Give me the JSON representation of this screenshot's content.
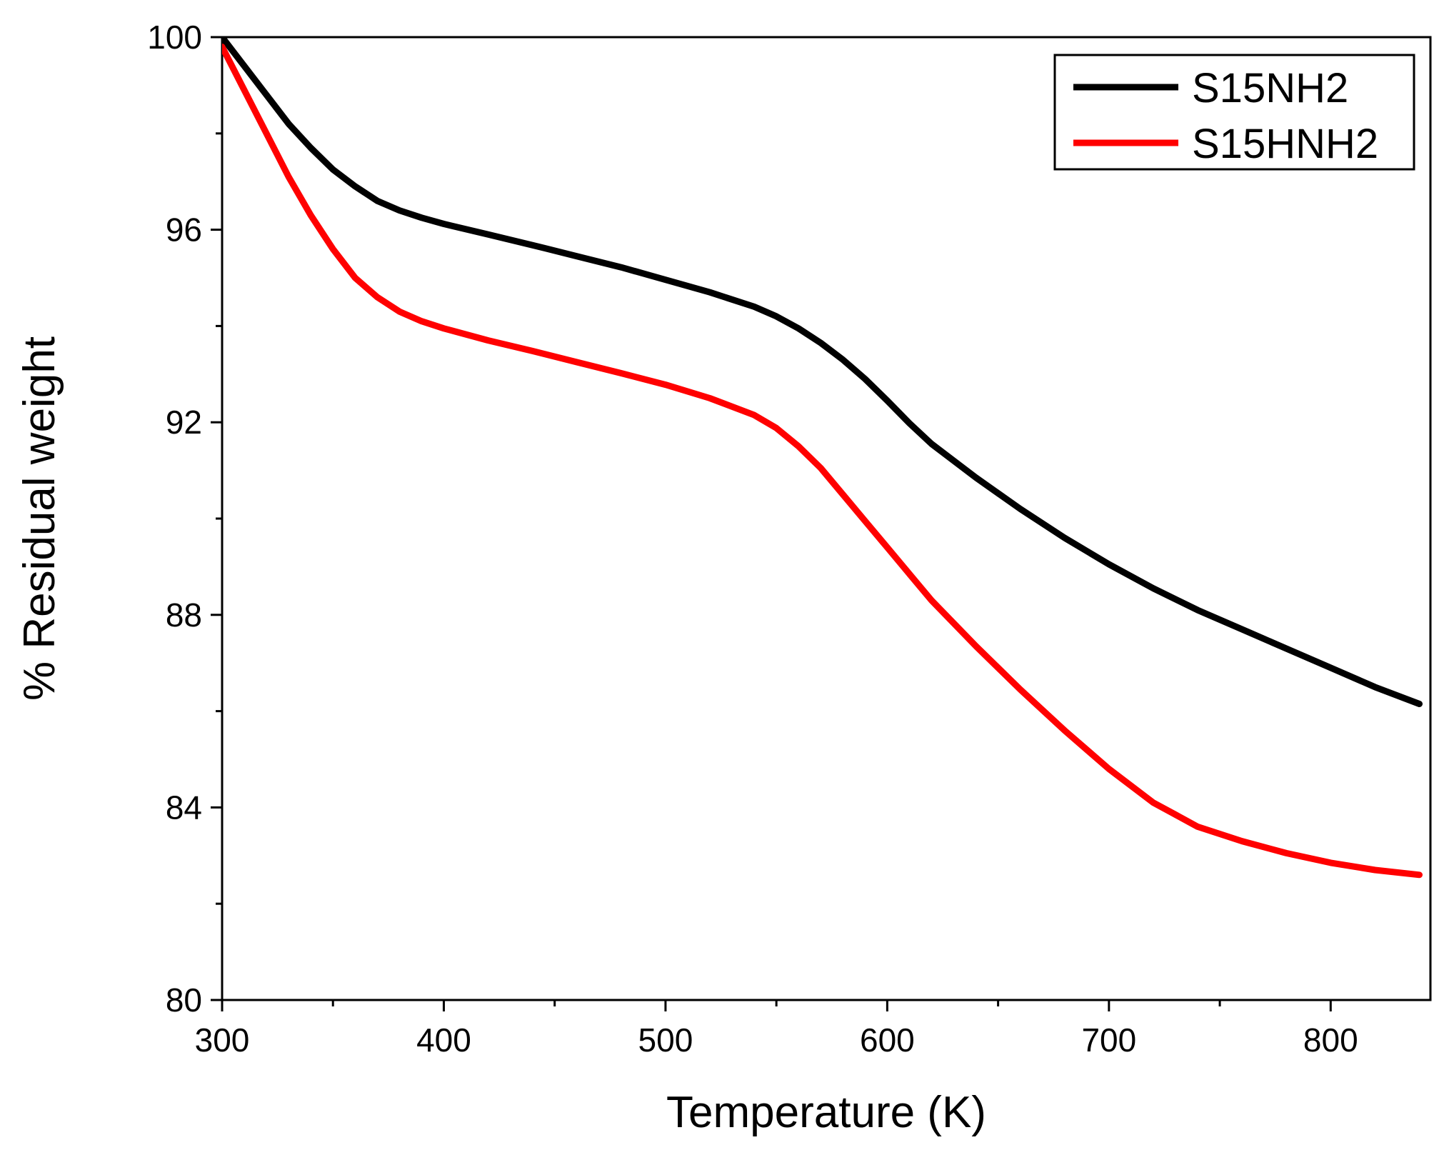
{
  "chart_data": {
    "type": "line",
    "title": "",
    "xlabel": "Temperature (K)",
    "ylabel": "% Residual weight",
    "xlim": [
      300,
      845
    ],
    "ylim": [
      80,
      100
    ],
    "x_ticks": [
      300,
      400,
      500,
      600,
      700,
      800
    ],
    "x_minor_ticks": [
      350,
      450,
      550,
      650,
      750
    ],
    "y_ticks": [
      80,
      84,
      88,
      92,
      96,
      100
    ],
    "y_minor_ticks": [
      82,
      86,
      90,
      94,
      98
    ],
    "grid": false,
    "legend_position": "top-right",
    "series": [
      {
        "name": "S15NH2",
        "color": "#000000",
        "x": [
          300,
          310,
          320,
          330,
          340,
          350,
          360,
          370,
          380,
          390,
          400,
          420,
          440,
          460,
          480,
          500,
          520,
          540,
          550,
          560,
          570,
          580,
          590,
          600,
          610,
          620,
          640,
          660,
          680,
          700,
          720,
          740,
          760,
          780,
          800,
          820,
          840
        ],
        "y": [
          100.0,
          99.4,
          98.8,
          98.2,
          97.7,
          97.25,
          96.9,
          96.6,
          96.4,
          96.25,
          96.12,
          95.9,
          95.68,
          95.45,
          95.22,
          94.96,
          94.7,
          94.4,
          94.2,
          93.95,
          93.65,
          93.3,
          92.9,
          92.45,
          91.98,
          91.55,
          90.85,
          90.2,
          89.6,
          89.05,
          88.55,
          88.1,
          87.7,
          87.3,
          86.9,
          86.5,
          86.15
        ]
      },
      {
        "name": "S15HNH2",
        "color": "#ff0000",
        "x": [
          300,
          310,
          320,
          330,
          340,
          350,
          360,
          370,
          380,
          390,
          400,
          420,
          440,
          460,
          480,
          500,
          520,
          540,
          550,
          560,
          570,
          580,
          590,
          600,
          610,
          620,
          640,
          660,
          680,
          700,
          720,
          730,
          740,
          760,
          780,
          800,
          820,
          840
        ],
        "y": [
          99.8,
          98.9,
          98.0,
          97.1,
          96.3,
          95.6,
          95.0,
          94.6,
          94.3,
          94.1,
          93.95,
          93.7,
          93.48,
          93.25,
          93.02,
          92.78,
          92.5,
          92.15,
          91.88,
          91.5,
          91.05,
          90.5,
          89.95,
          89.4,
          88.85,
          88.3,
          87.35,
          86.45,
          85.6,
          84.8,
          84.1,
          83.85,
          83.6,
          83.3,
          83.05,
          82.85,
          82.7,
          82.6
        ]
      }
    ]
  }
}
